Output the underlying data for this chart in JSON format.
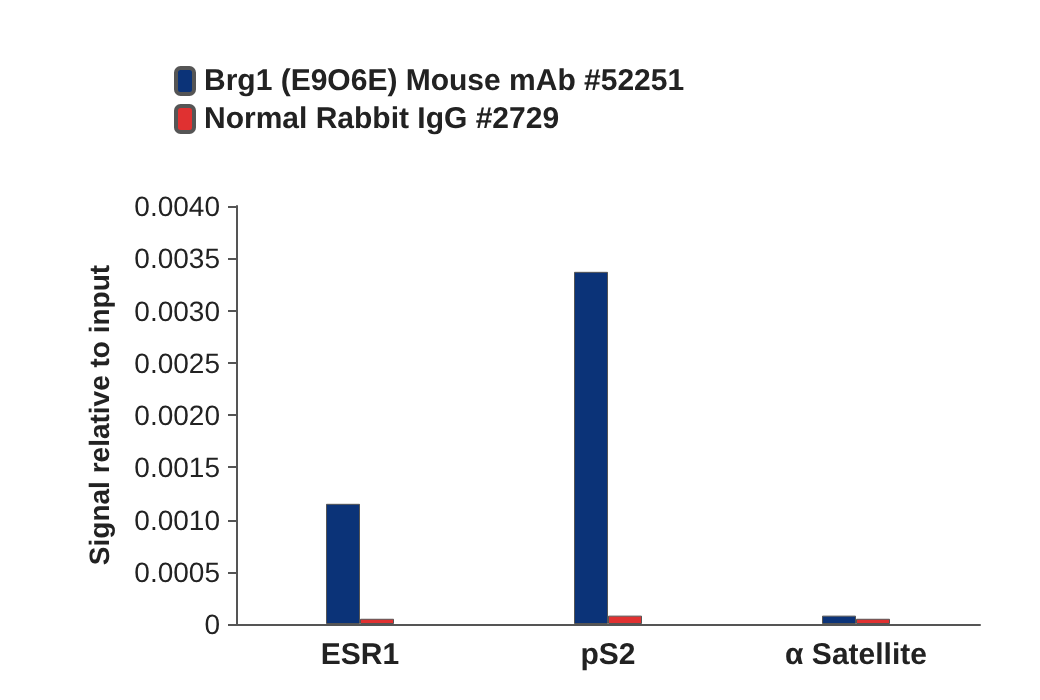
{
  "chart_data": {
    "type": "bar",
    "ylabel": "Signal relative to input",
    "categories": [
      "ESR1",
      "pS2",
      "α Satellite"
    ],
    "series": [
      {
        "name": "Brg1 (E9O6E) Mouse mAb #52251",
        "color": "#0b3378",
        "values": [
          0.00115,
          0.00337,
          8e-05
        ]
      },
      {
        "name": "Normal Rabbit IgG #2729",
        "color": "#e03131",
        "values": [
          5e-05,
          8e-05,
          5e-05
        ]
      }
    ],
    "ylim": [
      0,
      0.004
    ],
    "yticks": [
      0,
      {
        "value": 0.0005,
        "label": "0.0005"
      },
      {
        "value": 0.001,
        "label": "0.0010"
      },
      {
        "value": 0.0015,
        "label": "0.0015"
      },
      {
        "value": 0.002,
        "label": "0.0020"
      },
      {
        "value": 0.0025,
        "label": "0.0025"
      },
      {
        "value": 0.003,
        "label": "0.0030"
      },
      {
        "value": 0.0035,
        "label": "0.0035"
      },
      {
        "value": 0.004,
        "label": "0.0040"
      }
    ],
    "grid": false,
    "legend": "top left"
  }
}
